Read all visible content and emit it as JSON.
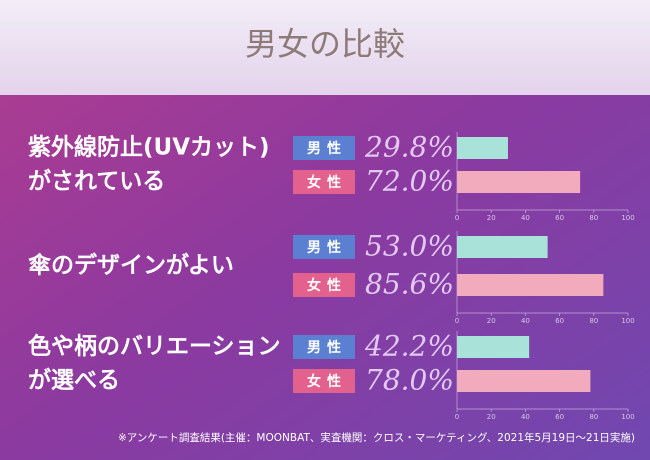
{
  "title": "男女の比較",
  "footnote": "※アンケート調査結果(主催：MOONBAT、実査機関：クロス・マーケティング、2021年5月19日〜21日実施)",
  "chart_data": [
    {
      "type": "bar",
      "title": [
        "紫外線防止(UVカット)",
        "がされている"
      ],
      "categories": [
        "男性",
        "女性"
      ],
      "values": [
        29.8,
        72.0
      ],
      "value_labels": [
        "29.8%",
        "72.0%"
      ],
      "colors": [
        "#a9e2d9",
        "#f2aabd"
      ],
      "xlim": [
        0,
        100
      ],
      "xticks": [
        0,
        20,
        40,
        60,
        80,
        100
      ]
    },
    {
      "type": "bar",
      "title": [
        "傘のデザインがよい"
      ],
      "categories": [
        "男性",
        "女性"
      ],
      "values": [
        53.0,
        85.6
      ],
      "value_labels": [
        "53.0%",
        "85.6%"
      ],
      "colors": [
        "#a9e2d9",
        "#f2aabd"
      ],
      "xlim": [
        0,
        100
      ],
      "xticks": [
        0,
        20,
        40,
        60,
        80,
        100
      ]
    },
    {
      "type": "bar",
      "title": [
        "色や柄のバリエーション",
        "が選べる"
      ],
      "categories": [
        "男性",
        "女性"
      ],
      "values": [
        42.2,
        78.0
      ],
      "value_labels": [
        "42.2%",
        "78.0%"
      ],
      "colors": [
        "#a9e2d9",
        "#f2aabd"
      ],
      "xlim": [
        0,
        100
      ],
      "xticks": [
        0,
        20,
        40,
        60,
        80,
        100
      ]
    }
  ]
}
